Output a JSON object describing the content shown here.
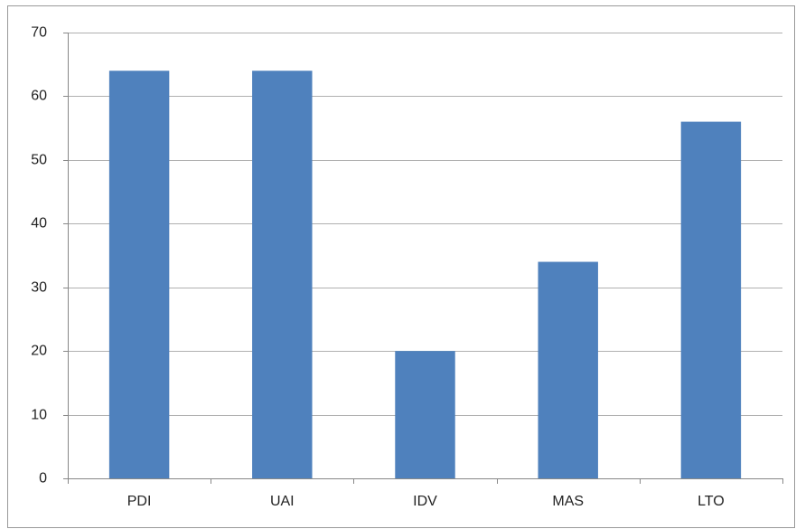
{
  "chart_data": {
    "type": "bar",
    "categories": [
      "PDI",
      "UAI",
      "IDV",
      "MAS",
      "LTO"
    ],
    "values": [
      64,
      64,
      20,
      34,
      56
    ],
    "color": "#4f81bd",
    "ylim": [
      0,
      70
    ],
    "yticks": [
      0,
      10,
      20,
      30,
      40,
      50,
      60,
      70
    ],
    "grid": true
  }
}
